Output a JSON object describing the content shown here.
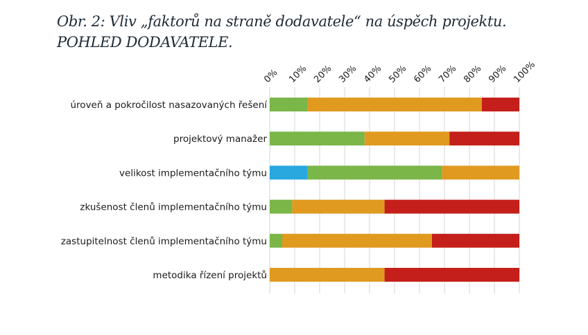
{
  "chart_data": {
    "type": "bar",
    "stacked": true,
    "horizontal": true,
    "title": "Obr. 2: Vliv „faktorů na straně dodavatele“ na úspěch projektu.",
    "subtitle": "POHLED DODAVATELE.",
    "xlim": [
      0,
      100
    ],
    "x_ticks": [
      "0%",
      "10%",
      "20%",
      "30%",
      "40%",
      "50%",
      "60%",
      "70%",
      "80%",
      "90%",
      "100%"
    ],
    "grid": true,
    "legend": "none",
    "categories": [
      "úroveň a pokročilost nasazovaných řešení",
      "projektový manažer",
      "velikost implementačního týmu",
      "zkušenost členů implementačního týmu",
      "zastupitelnost členů implementačního týmu",
      "metodika řízení projektů"
    ],
    "series": [
      {
        "color": "#29a8e0",
        "values": [
          0,
          0,
          15,
          0,
          0,
          0
        ]
      },
      {
        "color": "#7ab648",
        "values": [
          15,
          38,
          54,
          9,
          5,
          0
        ]
      },
      {
        "color": "#e09a1f",
        "values": [
          70,
          34,
          31,
          37,
          60,
          46
        ]
      },
      {
        "color": "#c41f1a",
        "values": [
          15,
          28,
          0,
          54,
          35,
          54
        ]
      }
    ]
  }
}
